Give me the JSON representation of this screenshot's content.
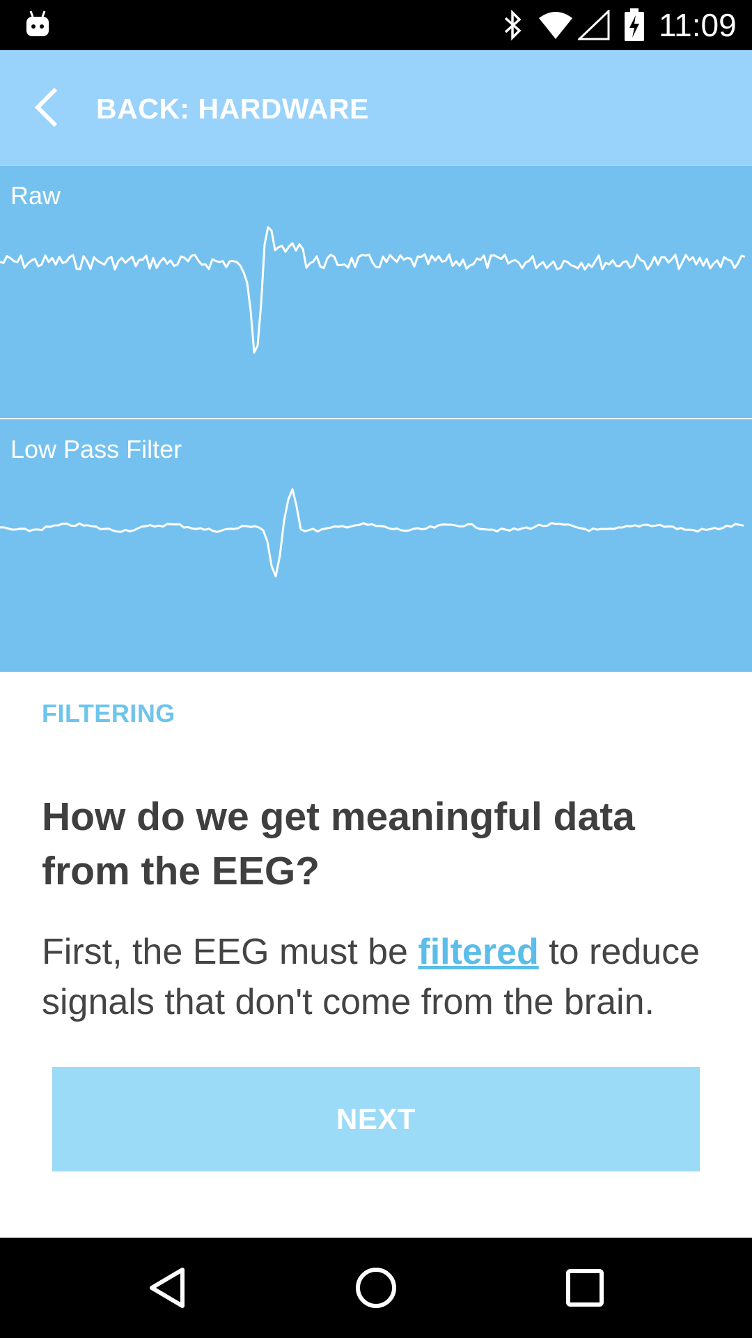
{
  "status_bar": {
    "time": "11:09",
    "icons": [
      "android-debug-icon",
      "bluetooth-icon",
      "wifi-icon",
      "signal-icon",
      "battery-charging-icon"
    ]
  },
  "app_bar": {
    "back_label": "BACK: HARDWARE",
    "back_icon": "chevron-left-icon",
    "background": "#99d2fb"
  },
  "plots": {
    "raw": {
      "title": "Raw"
    },
    "low_pass": {
      "title": "Low Pass Filter"
    },
    "background": "#74c1ef",
    "line_color": "#ffffff"
  },
  "content": {
    "section_label": "FILTERING",
    "question": "How do we get meaningful data from the EEG?",
    "body_before": "First, the EEG must be ",
    "body_link": "filtered",
    "body_after": " to reduce signals that don't come from the brain."
  },
  "next_button": {
    "label": "NEXT",
    "background": "#9cdbf8"
  },
  "nav_bar": {
    "icons": [
      "back-triangle-icon",
      "home-circle-icon",
      "recents-square-icon"
    ]
  },
  "colors": {
    "accent": "#6dc4ec",
    "link": "#5bbde9",
    "text_dark": "#3f3f3f"
  }
}
